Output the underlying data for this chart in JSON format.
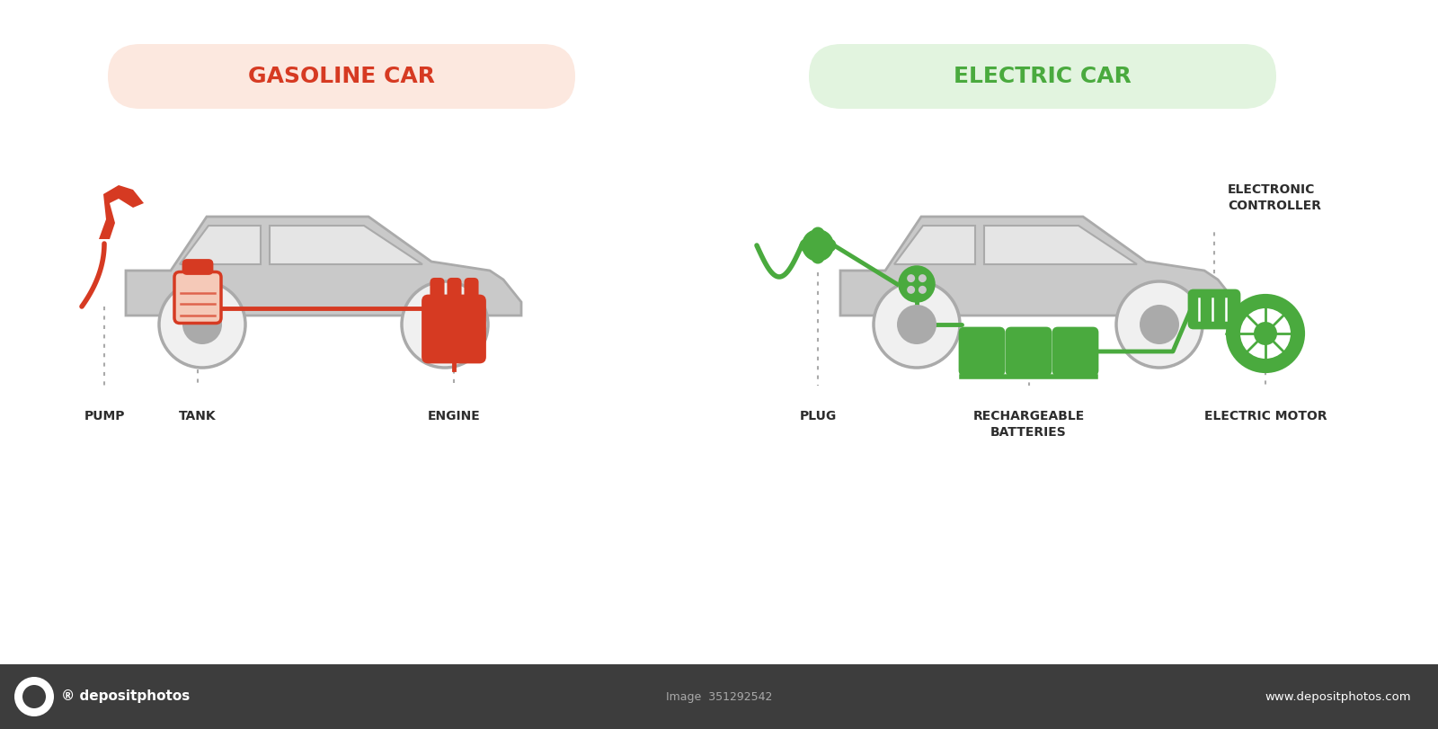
{
  "bg_color": "#ffffff",
  "footer_color": "#3d3d3d",
  "gasoline_title": "GASOLINE CAR",
  "electric_title": "ELECTRIC CAR",
  "gasoline_title_bg": "#fce8df",
  "electric_title_bg": "#e2f4df",
  "gasoline_title_color": "#d63a22",
  "electric_title_color": "#4aaa3e",
  "car_body_color": "#c9c9c9",
  "car_window_color": "#e5e5e5",
  "car_outline_color": "#aaaaaa",
  "gasoline_component_color": "#d63a22",
  "electric_component_color": "#4aaa3e",
  "tank_fill_color": "#f5c9b8",
  "label_color": "#2d2d2d",
  "label_fontsize": 10,
  "title_fontsize": 18,
  "pump_label": "PUMP",
  "tank_label": "TANK",
  "engine_label": "ENGINE",
  "plug_label": "PLUG",
  "batteries_label": "RECHARGEABLE\nBATTERIES",
  "motor_label": "ELECTRIC MOTOR",
  "controller_label": "ELECTRONIC\nCONTROLLER",
  "footer_text_left": "depositphotos",
  "footer_text_right": "www.depositphotos.com",
  "image_id": "Image  351292542"
}
